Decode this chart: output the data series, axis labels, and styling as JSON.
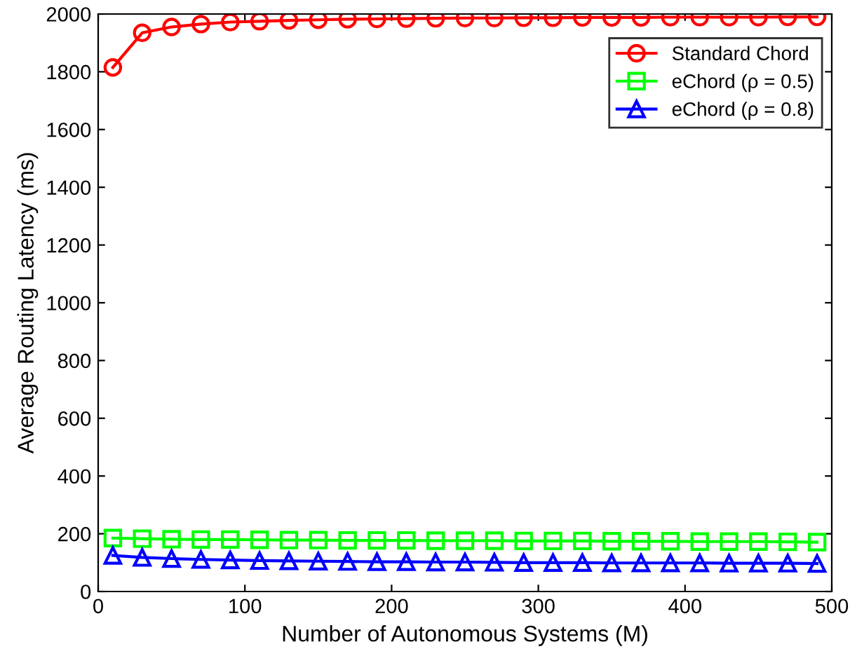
{
  "chart_data": {
    "type": "line",
    "xlabel": "Number of Autonomous Systems (M)",
    "ylabel": "Average Routing Latency (ms)",
    "x": [
      10,
      30,
      50,
      70,
      90,
      110,
      130,
      150,
      170,
      190,
      210,
      230,
      250,
      270,
      290,
      310,
      330,
      350,
      370,
      390,
      410,
      430,
      450,
      470,
      490
    ],
    "series": [
      {
        "name": "Standard Chord",
        "color": "#ff0000",
        "marker": "circle",
        "values": [
          1815,
          1935,
          1955,
          1965,
          1972,
          1975,
          1978,
          1980,
          1982,
          1983,
          1984,
          1985,
          1986,
          1986,
          1987,
          1987,
          1988,
          1988,
          1988,
          1989,
          1989,
          1989,
          1989,
          1990,
          1990
        ]
      },
      {
        "name": "eChord (ρ = 0.5)",
        "color": "#00ff00",
        "marker": "square",
        "values": [
          185,
          183,
          181,
          180,
          180,
          179,
          178,
          178,
          177,
          177,
          177,
          176,
          176,
          176,
          175,
          175,
          175,
          174,
          174,
          174,
          173,
          173,
          173,
          172,
          171
        ]
      },
      {
        "name": "eChord (ρ = 0.8)",
        "color": "#0000ff",
        "marker": "triangle",
        "values": [
          125,
          118,
          114,
          111,
          109,
          107,
          106,
          105,
          104,
          103,
          103,
          102,
          102,
          101,
          100,
          100,
          100,
          99,
          99,
          99,
          99,
          98,
          98,
          98,
          97
        ]
      }
    ],
    "xlim": [
      0,
      500
    ],
    "xticks": [
      0,
      100,
      200,
      300,
      400,
      500
    ],
    "ylim": [
      0,
      2000
    ],
    "yticks": [
      0,
      200,
      400,
      600,
      800,
      1000,
      1200,
      1400,
      1600,
      1800,
      2000
    ],
    "grid": false,
    "legend": "top right",
    "line_style": "solid"
  }
}
